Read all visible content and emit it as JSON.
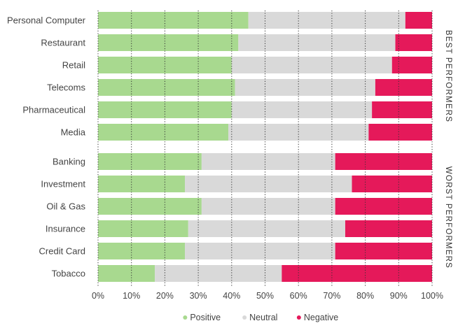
{
  "chart_data": {
    "type": "bar",
    "orientation": "horizontal",
    "stacked": true,
    "percent": true,
    "title": "",
    "xlabel": "",
    "ylabel": "",
    "xlim": [
      0,
      100
    ],
    "x_ticks": [
      "0%",
      "10%",
      "20%",
      "30%",
      "40%",
      "50%",
      "60%",
      "70%",
      "80%",
      "90%",
      "100%"
    ],
    "grid": "vertical dotted",
    "legend_position": "bottom",
    "groups": [
      {
        "label": "BEST PERFORMERS",
        "categories": [
          "Personal Computer",
          "Restaurant",
          "Retail",
          "Telecoms",
          "Pharmaceutical",
          "Media"
        ]
      },
      {
        "label": "WORST PERFORMERS",
        "categories": [
          "Banking",
          "Investment",
          "Oil & Gas",
          "Insurance",
          "Credit Card",
          "Tobacco"
        ]
      }
    ],
    "categories": [
      "Personal Computer",
      "Restaurant",
      "Retail",
      "Telecoms",
      "Pharmaceutical",
      "Media",
      "Banking",
      "Investment",
      "Oil & Gas",
      "Insurance",
      "Credit Card",
      "Tobacco"
    ],
    "series": [
      {
        "name": "Positive",
        "color": "#a8d98f",
        "values": [
          45,
          42,
          40,
          41,
          40,
          39,
          31,
          26,
          31,
          27,
          26,
          17
        ]
      },
      {
        "name": "Neutral",
        "color": "#d9d9d9",
        "values": [
          47,
          47,
          48,
          42,
          42,
          42,
          40,
          50,
          40,
          47,
          45,
          38
        ]
      },
      {
        "name": "Negative",
        "color": "#e5195a",
        "values": [
          8,
          11,
          12,
          17,
          18,
          19,
          29,
          24,
          29,
          26,
          29,
          45
        ]
      }
    ]
  }
}
